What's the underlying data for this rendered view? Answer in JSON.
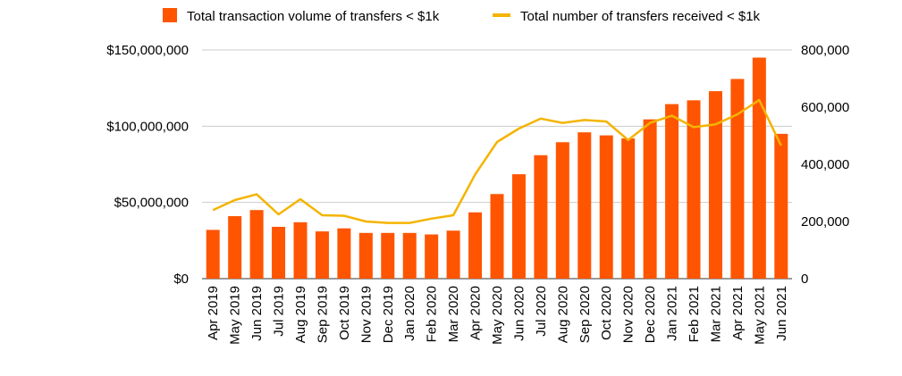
{
  "chart_data": {
    "type": "bar+line",
    "title": "",
    "categories": [
      "Apr 2019",
      "May 2019",
      "Jun 2019",
      "Jul 2019",
      "Aug 2019",
      "Sep 2019",
      "Oct 2019",
      "Nov 2019",
      "Dec 2019",
      "Jan 2020",
      "Feb 2020",
      "Mar 2020",
      "Apr 2020",
      "May 2020",
      "Jun 2020",
      "Jul 2020",
      "Aug 2020",
      "Sep 2020",
      "Oct 2020",
      "Nov 2020",
      "Dec 2020",
      "Jan 2021",
      "Feb 2021",
      "Mar 2021",
      "Apr 2021",
      "May 2021",
      "Jun 2021"
    ],
    "series": [
      {
        "name": "Total transaction volume of transfers < $1k",
        "type": "bar",
        "axis": "left",
        "color": "#ff5500",
        "values": [
          32000000,
          41000000,
          45000000,
          34000000,
          37000000,
          31000000,
          33000000,
          30000000,
          30000000,
          30000000,
          29000000,
          31500000,
          43500000,
          55500000,
          68500000,
          81000000,
          89500000,
          96000000,
          94000000,
          92000000,
          104500000,
          114500000,
          117000000,
          123000000,
          131000000,
          145000000,
          95000000
        ]
      },
      {
        "name": "Total number of transfers received < $1k",
        "type": "line",
        "axis": "right",
        "color": "#f4b400",
        "values": [
          240000,
          275000,
          295000,
          225000,
          278000,
          222000,
          220000,
          200000,
          195000,
          195000,
          210000,
          222000,
          365000,
          478000,
          525000,
          560000,
          545000,
          555000,
          550000,
          485000,
          545000,
          570000,
          530000,
          540000,
          575000,
          625000,
          465000
        ]
      }
    ],
    "y_left": {
      "ylim": [
        0,
        150000000
      ],
      "ticks": [
        0,
        50000000,
        100000000,
        150000000
      ],
      "tick_labels": [
        "$0",
        "$50,000,000",
        "$100,000,000",
        "$150,000,000"
      ]
    },
    "y_right": {
      "ylim": [
        0,
        800000
      ],
      "ticks": [
        0,
        200000,
        400000,
        600000,
        800000
      ],
      "tick_labels": [
        "0",
        "200,000",
        "400,000",
        "600,000",
        "800,000"
      ]
    },
    "grid": true,
    "legend_position": "top",
    "xlabel": "",
    "ylabel": ""
  }
}
